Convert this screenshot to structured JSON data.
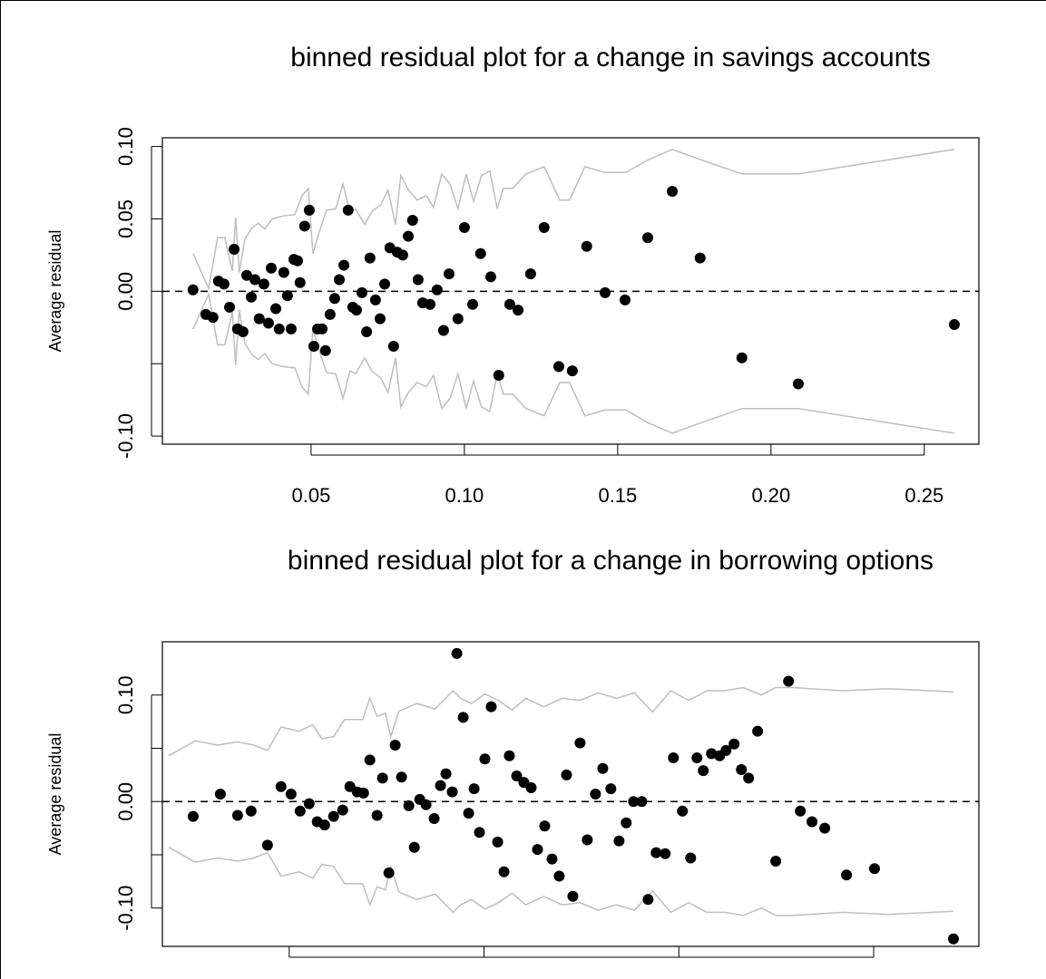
{
  "chart_data": [
    {
      "type": "scatter",
      "title": "binned residual plot for a change in savings accounts",
      "ylabel": "Average residual",
      "color": "#000000",
      "x": [
        0.0115,
        0.0157,
        0.018,
        0.0198,
        0.0216,
        0.0234,
        0.0249,
        0.026,
        0.0278,
        0.029,
        0.0305,
        0.0317,
        0.0331,
        0.0346,
        0.0361,
        0.037,
        0.0385,
        0.0396,
        0.0411,
        0.0423,
        0.0435,
        0.0444,
        0.0456,
        0.0464,
        0.0479,
        0.0494,
        0.0509,
        0.0521,
        0.0536,
        0.0547,
        0.0562,
        0.0577,
        0.0592,
        0.0607,
        0.0621,
        0.0636,
        0.0648,
        0.0666,
        0.0681,
        0.0692,
        0.071,
        0.0725,
        0.074,
        0.0757,
        0.0769,
        0.0781,
        0.0799,
        0.0817,
        0.0831,
        0.0849,
        0.0864,
        0.0888,
        0.0911,
        0.0932,
        0.095,
        0.0979,
        0.1,
        0.1027,
        0.1053,
        0.1086,
        0.1112,
        0.1148,
        0.1175,
        0.1216,
        0.126,
        0.1308,
        0.1352,
        0.1399,
        0.1459,
        0.1524,
        0.1598,
        0.1678,
        0.1769,
        0.1905,
        0.2089,
        0.2598
      ],
      "values": [
        0.001,
        -0.016,
        -0.018,
        0.007,
        0.005,
        -0.011,
        0.029,
        -0.026,
        -0.028,
        0.011,
        -0.004,
        0.008,
        -0.019,
        0.005,
        -0.022,
        0.016,
        -0.012,
        -0.026,
        0.013,
        -0.003,
        -0.026,
        0.022,
        0.021,
        0.006,
        0.045,
        0.056,
        -0.038,
        -0.026,
        -0.026,
        -0.041,
        -0.016,
        -0.005,
        0.008,
        0.018,
        0.056,
        -0.011,
        -0.013,
        -0.001,
        -0.028,
        0.023,
        -0.006,
        -0.019,
        0.005,
        0.03,
        -0.038,
        0.027,
        0.025,
        0.038,
        0.049,
        0.008,
        -0.008,
        -0.009,
        0.001,
        -0.027,
        0.012,
        -0.019,
        0.044,
        -0.009,
        0.026,
        0.01,
        -0.058,
        -0.009,
        -0.013,
        0.012,
        0.044,
        -0.052,
        -0.055,
        0.031,
        -0.001,
        -0.006,
        0.037,
        0.069,
        0.023,
        -0.046,
        -0.064,
        -0.023
      ],
      "series": [
        {
          "type": "line",
          "color": "#bebebe",
          "x": [
            0.0115,
            0.0166,
            0.0195,
            0.0219,
            0.0243,
            0.0254,
            0.0266,
            0.0284,
            0.0308,
            0.0328,
            0.0349,
            0.0373,
            0.0408,
            0.0447,
            0.047,
            0.0491,
            0.0506,
            0.0527,
            0.055,
            0.058,
            0.0604,
            0.0627,
            0.0645,
            0.0675,
            0.0698,
            0.0728,
            0.0751,
            0.0775,
            0.0793,
            0.0817,
            0.0846,
            0.0876,
            0.0899,
            0.0926,
            0.0953,
            0.0979,
            0.1006,
            0.103,
            0.1056,
            0.1083,
            0.1107,
            0.1127,
            0.1157,
            0.1201,
            0.126,
            0.1311,
            0.1343,
            0.1393,
            0.1459,
            0.1527,
            0.1601,
            0.1678,
            0.1769,
            0.1905,
            0.2089,
            0.2598
          ],
          "values": [
            0.026,
            0.002,
            0.037,
            0.037,
            0.014,
            0.051,
            0.013,
            0.036,
            0.044,
            0.047,
            0.043,
            0.05,
            0.052,
            0.053,
            0.066,
            0.071,
            0.026,
            0.041,
            0.056,
            0.057,
            0.074,
            0.055,
            0.057,
            0.046,
            0.055,
            0.06,
            0.07,
            0.046,
            0.08,
            0.07,
            0.063,
            0.066,
            0.058,
            0.081,
            0.074,
            0.057,
            0.081,
            0.062,
            0.08,
            0.083,
            0.057,
            0.071,
            0.071,
            0.081,
            0.086,
            0.063,
            0.063,
            0.086,
            0.082,
            0.082,
            0.091,
            0.098,
            0.091,
            0.081,
            0.081,
            0.098
          ]
        },
        {
          "type": "line",
          "color": "#bebebe",
          "x": [
            0.0115,
            0.0166,
            0.0195,
            0.0219,
            0.0243,
            0.0254,
            0.0266,
            0.0284,
            0.0308,
            0.0328,
            0.0349,
            0.0373,
            0.0408,
            0.0447,
            0.047,
            0.0491,
            0.0506,
            0.0527,
            0.055,
            0.058,
            0.0604,
            0.0627,
            0.0645,
            0.0675,
            0.0698,
            0.0728,
            0.0751,
            0.0775,
            0.0793,
            0.0817,
            0.0846,
            0.0876,
            0.0899,
            0.0926,
            0.0953,
            0.0979,
            0.1006,
            0.103,
            0.1056,
            0.1083,
            0.1107,
            0.1127,
            0.1157,
            0.1201,
            0.126,
            0.1311,
            0.1343,
            0.1393,
            0.1459,
            0.1527,
            0.1601,
            0.1678,
            0.1769,
            0.1905,
            0.2089,
            0.2598
          ],
          "values": [
            -0.026,
            -0.002,
            -0.037,
            -0.037,
            -0.014,
            -0.051,
            -0.013,
            -0.036,
            -0.044,
            -0.047,
            -0.043,
            -0.05,
            -0.052,
            -0.053,
            -0.066,
            -0.071,
            -0.026,
            -0.041,
            -0.056,
            -0.057,
            -0.074,
            -0.055,
            -0.057,
            -0.046,
            -0.055,
            -0.06,
            -0.07,
            -0.046,
            -0.08,
            -0.07,
            -0.063,
            -0.066,
            -0.058,
            -0.081,
            -0.074,
            -0.057,
            -0.081,
            -0.062,
            -0.08,
            -0.083,
            -0.057,
            -0.071,
            -0.071,
            -0.081,
            -0.086,
            -0.063,
            -0.063,
            -0.086,
            -0.082,
            -0.082,
            -0.091,
            -0.098,
            -0.091,
            -0.081,
            -0.081,
            -0.098
          ]
        }
      ],
      "hline": 0,
      "xlim": [
        0.0015,
        0.2678
      ],
      "ylim": [
        -0.1056,
        0.106
      ],
      "xticks": [
        0.05,
        {
          "value": 0.1,
          "label": "0.10"
        },
        0.15,
        {
          "value": 0.2,
          "label": "0.20"
        },
        0.25
      ],
      "yticks": [
        {
          "value": -0.1,
          "label": "-0.10"
        },
        {
          "value": -0.05,
          "label": null
        },
        {
          "value": 0,
          "label": "0.00"
        },
        {
          "value": 0.05,
          "label": "0.05"
        },
        {
          "value": 0.1,
          "label": "0.10"
        }
      ]
    },
    {
      "type": "scatter",
      "title": "binned residual plot for a change in borrowing options",
      "ylabel": "Average residual",
      "color": "#000000",
      "x": [
        0.1014,
        0.1293,
        0.147,
        0.1609,
        0.1777,
        0.1916,
        0.2019,
        0.2112,
        0.2205,
        0.2288,
        0.2363,
        0.2456,
        0.2549,
        0.2623,
        0.2698,
        0.2763,
        0.2828,
        0.2902,
        0.2958,
        0.3023,
        0.3088,
        0.3153,
        0.3228,
        0.3284,
        0.334,
        0.3405,
        0.3488,
        0.3553,
        0.3609,
        0.3674,
        0.3721,
        0.3786,
        0.3842,
        0.3898,
        0.3953,
        0.4009,
        0.4074,
        0.414,
        0.4205,
        0.426,
        0.4335,
        0.4409,
        0.4484,
        0.4549,
        0.4623,
        0.4698,
        0.4772,
        0.4847,
        0.4912,
        0.4986,
        0.506,
        0.5144,
        0.5219,
        0.5302,
        0.5386,
        0.546,
        0.5535,
        0.5619,
        0.5684,
        0.5767,
        0.586,
        0.5944,
        0.6037,
        0.6121,
        0.6186,
        0.6251,
        0.6335,
        0.6419,
        0.6484,
        0.6567,
        0.6642,
        0.6716,
        0.6809,
        0.6995,
        0.7126,
        0.7247,
        0.7367,
        0.7498,
        0.7721,
        0.8009,
        0.8819
      ],
      "values": [
        -0.014,
        0.007,
        -0.013,
        -0.009,
        -0.041,
        0.014,
        0.007,
        -0.009,
        -0.002,
        -0.019,
        -0.022,
        -0.014,
        -0.008,
        0.014,
        0.009,
        0.008,
        0.039,
        -0.013,
        0.022,
        -0.067,
        0.053,
        0.023,
        -0.004,
        -0.043,
        0.002,
        -0.003,
        -0.016,
        0.015,
        0.026,
        0.009,
        0.139,
        0.079,
        -0.011,
        0.012,
        -0.029,
        0.04,
        0.089,
        -0.038,
        -0.066,
        0.043,
        0.024,
        0.018,
        0.013,
        -0.045,
        -0.023,
        -0.054,
        -0.07,
        0.025,
        -0.089,
        0.055,
        -0.036,
        0.007,
        0.031,
        0.012,
        -0.037,
        -0.02,
        0,
        0,
        -0.092,
        -0.048,
        -0.049,
        0.041,
        -0.009,
        -0.053,
        0.041,
        0.029,
        0.045,
        0.043,
        0.048,
        0.054,
        0.03,
        0.022,
        0.066,
        -0.056,
        0.113,
        -0.009,
        -0.019,
        -0.025,
        -0.069,
        -0.063,
        -0.129
      ],
      "series": [
        {
          "type": "line",
          "color": "#bebebe",
          "x": [
            0.0763,
            0.1033,
            0.1265,
            0.147,
            0.1637,
            0.1777,
            0.1916,
            0.2102,
            0.2242,
            0.2335,
            0.2456,
            0.2567,
            0.2753,
            0.2828,
            0.2902,
            0.2986,
            0.3042,
            0.3126,
            0.3312,
            0.3498,
            0.3684,
            0.3758,
            0.387,
            0.4009,
            0.4149,
            0.4288,
            0.4428,
            0.4614,
            0.48,
            0.4986,
            0.5172,
            0.5358,
            0.5544,
            0.573,
            0.5916,
            0.6102,
            0.6288,
            0.6474,
            0.666,
            0.6847,
            0.6995,
            0.7172,
            0.7684,
            0.8149,
            0.8819
          ],
          "values": [
            0.043,
            0.057,
            0.053,
            0.056,
            0.053,
            0.048,
            0.07,
            0.066,
            0.072,
            0.059,
            0.061,
            0.077,
            0.077,
            0.097,
            0.08,
            0.083,
            0.061,
            0.085,
            0.092,
            0.087,
            0.104,
            0.097,
            0.092,
            0.101,
            0.095,
            0.086,
            0.097,
            0.089,
            0.097,
            0.095,
            0.102,
            0.097,
            0.102,
            0.084,
            0.104,
            0.095,
            0.104,
            0.104,
            0.107,
            0.1,
            0.107,
            0.107,
            0.104,
            0.106,
            0.103
          ]
        },
        {
          "type": "line",
          "color": "#bebebe",
          "x": [
            0.0763,
            0.1033,
            0.1265,
            0.147,
            0.1637,
            0.1777,
            0.1916,
            0.2102,
            0.2242,
            0.2335,
            0.2456,
            0.2567,
            0.2753,
            0.2828,
            0.2902,
            0.2986,
            0.3042,
            0.3126,
            0.3312,
            0.3498,
            0.3684,
            0.3758,
            0.387,
            0.4009,
            0.4149,
            0.4288,
            0.4428,
            0.4614,
            0.48,
            0.4986,
            0.5172,
            0.5358,
            0.5544,
            0.573,
            0.5916,
            0.6102,
            0.6288,
            0.6474,
            0.666,
            0.6847,
            0.6995,
            0.7172,
            0.7684,
            0.8149,
            0.8819
          ],
          "values": [
            -0.043,
            -0.057,
            -0.053,
            -0.056,
            -0.053,
            -0.048,
            -0.07,
            -0.066,
            -0.072,
            -0.059,
            -0.061,
            -0.077,
            -0.077,
            -0.097,
            -0.08,
            -0.083,
            -0.061,
            -0.085,
            -0.092,
            -0.087,
            -0.104,
            -0.097,
            -0.092,
            -0.101,
            -0.095,
            -0.086,
            -0.097,
            -0.089,
            -0.097,
            -0.095,
            -0.102,
            -0.097,
            -0.102,
            -0.084,
            -0.104,
            -0.095,
            -0.104,
            -0.104,
            -0.107,
            -0.1,
            -0.107,
            -0.107,
            -0.104,
            -0.106,
            -0.103
          ]
        }
      ],
      "hline": 0,
      "xlim": [
        0.0698,
        0.908
      ],
      "ylim": [
        -0.136,
        0.15
      ],
      "xticks": [
        {
          "value": 0.2,
          "label": null
        },
        {
          "value": 0.4,
          "label": null
        },
        {
          "value": 0.6,
          "label": null
        },
        {
          "value": 0.8,
          "label": null
        }
      ],
      "yticks": [
        {
          "value": -0.1,
          "label": "-0.10"
        },
        {
          "value": -0.05,
          "label": null
        },
        {
          "value": 0,
          "label": "0.00"
        },
        {
          "value": 0.05,
          "label": null
        },
        {
          "value": 0.1,
          "label": "0.10"
        }
      ]
    }
  ]
}
